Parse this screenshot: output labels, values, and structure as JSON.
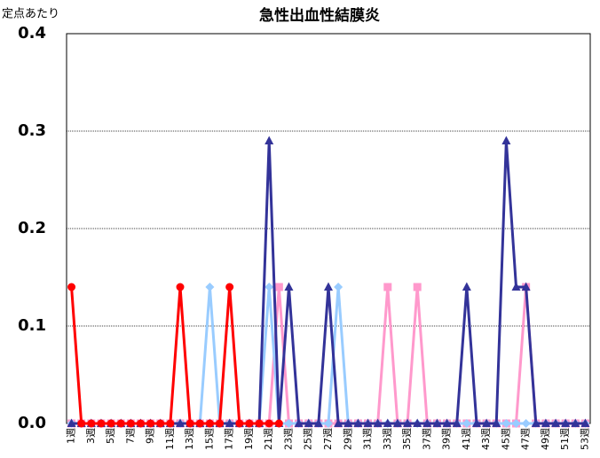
{
  "chart_data": {
    "type": "line",
    "title": "急性出血性結膜炎",
    "y_label": "定点あたり",
    "categories": [
      "1週",
      null,
      "3週",
      null,
      "5週",
      null,
      "7週",
      null,
      "9週",
      null,
      "11週",
      null,
      "13週",
      null,
      "15週",
      null,
      "17週",
      null,
      "19週",
      null,
      "21週",
      null,
      "23週",
      null,
      "25週",
      null,
      "27週",
      null,
      "29週",
      null,
      "31週",
      null,
      "33週",
      null,
      "35週",
      null,
      "37週",
      null,
      "39週",
      null,
      "41週",
      null,
      "43週",
      null,
      "45週",
      null,
      "47週",
      null,
      "49週",
      null,
      "51週",
      null,
      "53週"
    ],
    "series": [
      {
        "color": "#ff99cc",
        "marker": "square",
        "values": [
          0,
          0,
          0,
          0,
          0,
          0,
          0,
          0,
          0,
          0,
          0,
          0,
          0,
          0,
          0,
          0,
          0,
          0,
          0,
          0,
          0,
          0.14,
          0,
          0,
          0,
          0,
          0,
          0,
          0,
          0,
          0,
          0,
          0.14,
          0,
          0,
          0.14,
          0,
          0,
          0,
          0,
          0,
          0,
          0,
          0,
          0,
          0,
          0.14,
          0,
          0,
          0,
          0,
          0,
          0
        ]
      },
      {
        "color": "#99ccff",
        "marker": "diamond",
        "values": [
          0,
          0,
          0,
          0,
          0,
          0,
          0,
          0,
          0,
          0,
          0,
          0,
          0,
          0,
          0.14,
          0,
          0,
          0,
          0,
          0,
          0.14,
          0,
          0,
          0,
          0,
          0,
          0,
          0.14,
          0,
          0,
          0,
          0,
          0,
          0,
          0,
          0,
          0,
          0,
          0,
          0,
          0,
          0,
          0,
          0,
          0,
          0,
          0,
          0,
          0,
          0,
          0,
          0,
          0
        ]
      },
      {
        "color": "#333399",
        "marker": "triangle",
        "values": [
          0,
          0,
          0,
          0,
          0,
          0,
          0,
          0,
          0,
          0,
          0,
          0,
          0,
          0,
          0,
          0,
          0,
          0,
          0,
          0,
          0.29,
          0,
          0.14,
          0,
          0,
          0,
          0.14,
          0,
          0,
          0,
          0,
          0,
          0,
          0,
          0,
          0,
          0,
          0,
          0,
          0,
          0.14,
          0,
          0,
          0,
          0.29,
          0.14,
          0.14,
          0,
          0,
          0,
          0,
          0,
          0
        ]
      },
      {
        "color": "#ff0000",
        "marker": "circle",
        "values": [
          0.14,
          0,
          0,
          0,
          0,
          0,
          0,
          0,
          0,
          0,
          0,
          0.14,
          0,
          0,
          0,
          0,
          0.14,
          0,
          0,
          0,
          0,
          0,
          null,
          null,
          null,
          null,
          null,
          null,
          null,
          null,
          null,
          null,
          null,
          null,
          null,
          null,
          null,
          null,
          null,
          null,
          null,
          null,
          null,
          null,
          null,
          null,
          null,
          null,
          null,
          null,
          null,
          null,
          null
        ]
      }
    ],
    "ylim": [
      0,
      0.4
    ],
    "yticks": [
      {
        "value": 0,
        "label": "0.0"
      },
      0.1,
      0.2,
      0.3,
      0.4
    ],
    "grid": true
  }
}
